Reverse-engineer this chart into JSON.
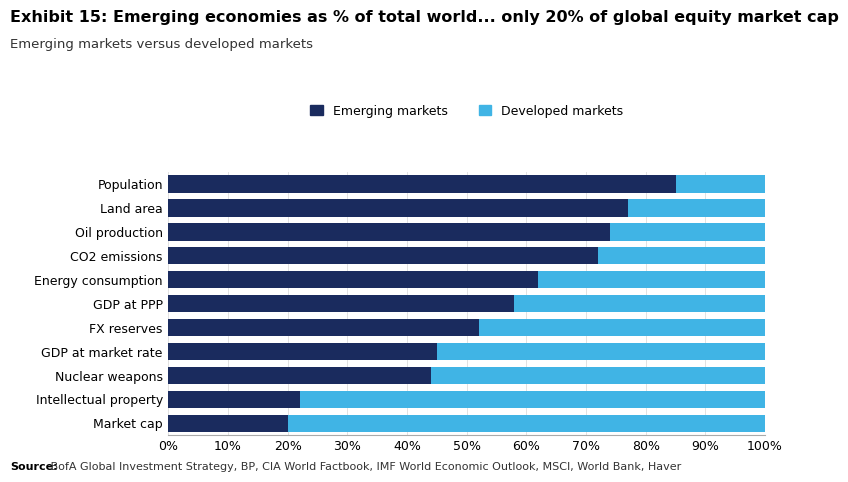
{
  "title": "Exhibit 15: Emerging economies as % of total world... only 20% of global equity market cap",
  "subtitle": "Emerging markets versus developed markets",
  "source_bold": "Source:",
  "source_rest": " BofA Global Investment Strategy, BP, CIA World Factbook, IMF World Economic Outlook, MSCI, World Bank, Haver",
  "categories": [
    "Population",
    "Land area",
    "Oil production",
    "CO2 emissions",
    "Energy consumption",
    "GDP at PPP",
    "FX reserves",
    "GDP at market rate",
    "Nuclear weapons",
    "Intellectual property",
    "Market cap"
  ],
  "emerging_values": [
    85,
    77,
    74,
    72,
    62,
    58,
    52,
    45,
    44,
    22,
    20
  ],
  "developed_values": [
    15,
    23,
    26,
    28,
    38,
    42,
    48,
    55,
    56,
    78,
    80
  ],
  "emerging_color": "#1a2b5e",
  "developed_color": "#40b4e5",
  "legend_emerging": "Emerging markets",
  "legend_developed": "Developed markets",
  "background_color": "#ffffff",
  "title_fontsize": 11.5,
  "subtitle_fontsize": 9.5,
  "tick_fontsize": 9,
  "label_fontsize": 9,
  "source_fontsize": 8
}
